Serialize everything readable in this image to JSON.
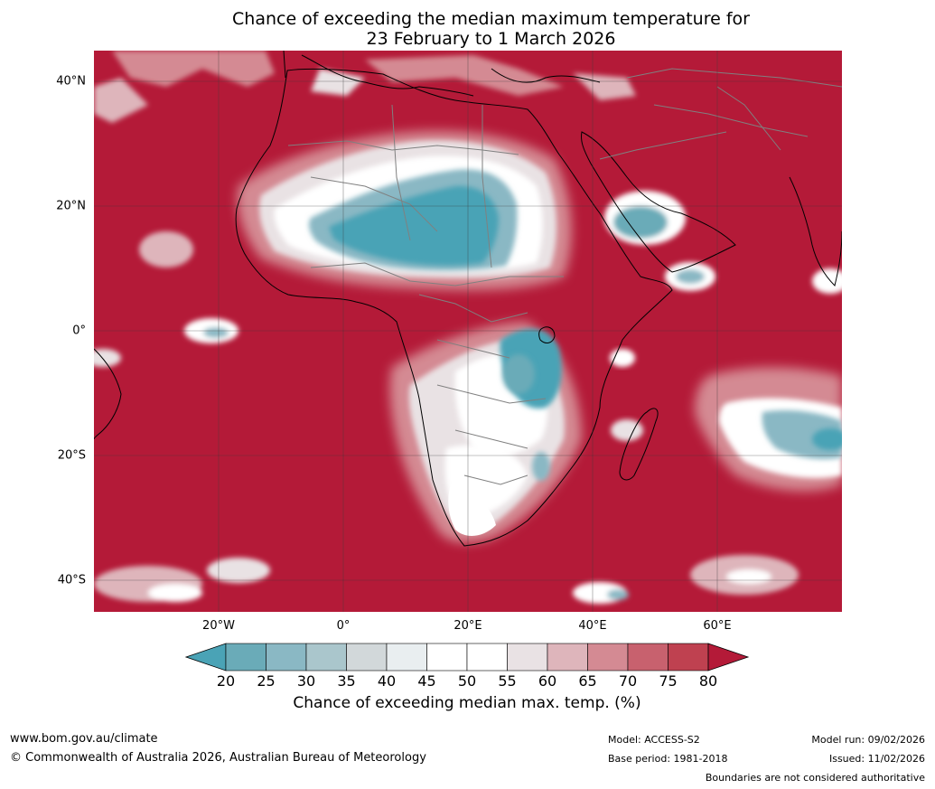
{
  "title": {
    "line1": "Chance of exceeding the median maximum temperature for",
    "line2": "23 February to 1 March 2026"
  },
  "map": {
    "lat_labels": [
      "40°N",
      "20°N",
      "0°",
      "20°S",
      "40°S"
    ],
    "lon_labels": [
      "20°W",
      "0°",
      "20°E",
      "40°E",
      "60°E"
    ],
    "colors": {
      "ocean_high": "#b41a38",
      "land_outline": "#000000",
      "borders": "#808080",
      "grid": "#3a3a3a"
    }
  },
  "colorbar": {
    "ticks": [
      "20",
      "25",
      "30",
      "35",
      "40",
      "45",
      "50",
      "55",
      "60",
      "65",
      "70",
      "75",
      "80"
    ],
    "colors": [
      "#4aa3b6",
      "#6aabb8",
      "#8ab8c4",
      "#aac6cc",
      "#d2d8da",
      "#e9eef0",
      "#ffffff",
      "#ffffff",
      "#e9e2e4",
      "#deb5bb",
      "#d48a93",
      "#c8616e",
      "#bf4150",
      "#b41a38"
    ],
    "label": "Chance of exceeding median max. temp. (%)"
  },
  "footer": {
    "website": "www.bom.gov.au/climate",
    "copyright": "© Commonwealth of Australia 2026, Australian Bureau of Meteorology",
    "model": "Model: ACCESS-S2",
    "base_period": "Base period: 1981-2018",
    "model_run": "Model run: 09/02/2026",
    "issued": "Issued: 11/02/2026",
    "disclaimer": "Boundaries are not considered authoritative"
  }
}
